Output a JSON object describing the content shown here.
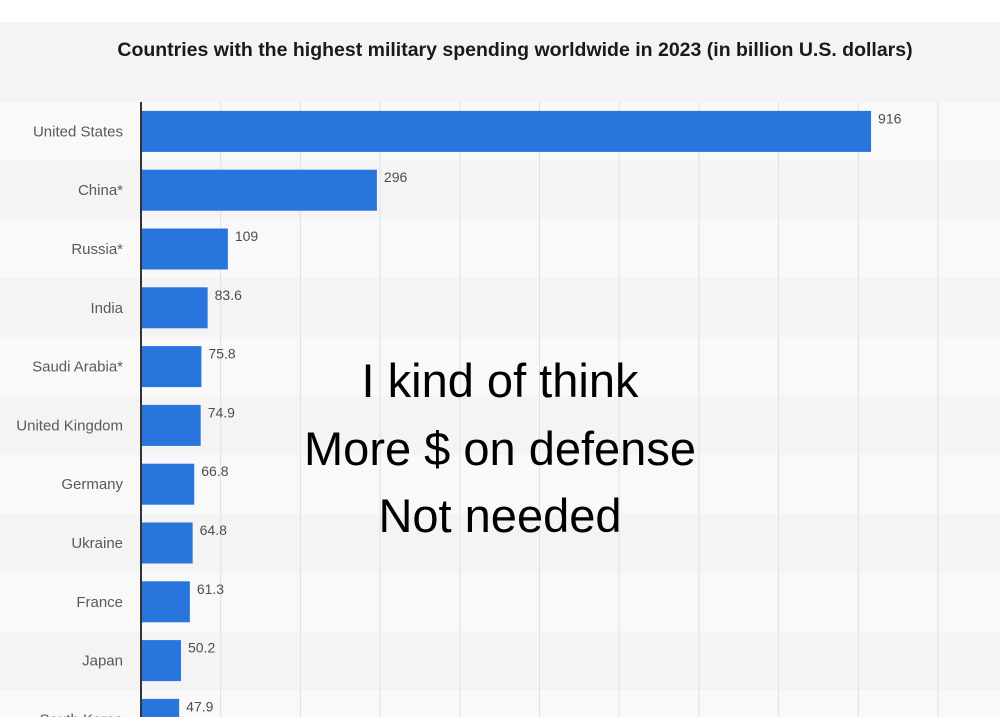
{
  "chart_data": {
    "type": "bar",
    "orientation": "horizontal",
    "title": "Countries with the highest military spending worldwide in 2023 (in billion U.S. dollars)",
    "xlabel": "",
    "ylabel": "",
    "categories": [
      "United States",
      "China*",
      "Russia*",
      "India",
      "Saudi Arabia*",
      "United Kingdom",
      "Germany",
      "Ukraine",
      "France",
      "Japan",
      "South Korea"
    ],
    "values": [
      916,
      296,
      109,
      83.6,
      75.8,
      74.9,
      66.8,
      64.8,
      61.3,
      50.2,
      47.9
    ],
    "value_labels": [
      "916",
      "296",
      "109",
      "83.6",
      "75.8",
      "74.9",
      "66.8",
      "64.8",
      "61.3",
      "50.2",
      "47.9"
    ],
    "xlim": [
      0,
      1000
    ],
    "grid": true,
    "bar_color": "#2876dd"
  },
  "overlay": {
    "lines": [
      "I kind of think",
      "More $ on defense",
      "Not needed"
    ]
  }
}
